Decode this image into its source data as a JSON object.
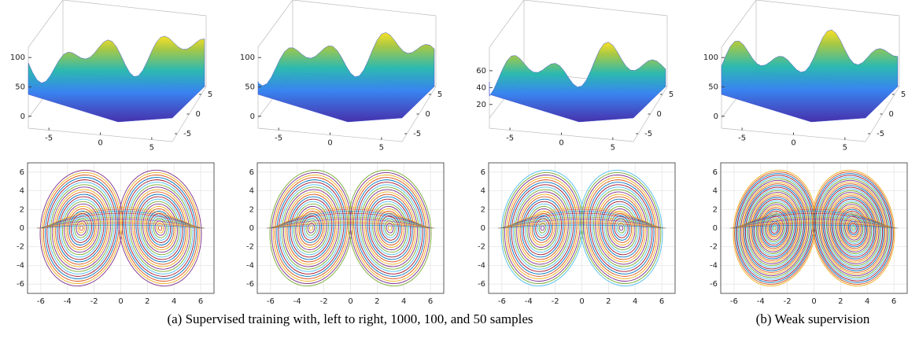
{
  "panels": [
    {
      "surface": {
        "zlim": [
          -3,
          115
        ],
        "zticks": [
          0,
          50,
          100
        ],
        "xlim": [
          -7,
          7
        ],
        "xticks": [
          -5,
          0,
          5
        ],
        "ylim": [
          -7,
          7
        ],
        "yticks": [
          -5,
          0,
          5
        ]
      },
      "phase": {
        "xlim": [
          -7,
          7
        ],
        "xticks": [
          -6,
          -4,
          -2,
          0,
          2,
          4,
          6
        ],
        "ylim": [
          -7,
          7
        ],
        "yticks": [
          -6,
          -4,
          -2,
          0,
          2,
          4,
          6
        ]
      }
    },
    {
      "surface": {
        "zlim": [
          -3,
          115
        ],
        "zticks": [
          0,
          50,
          100
        ],
        "xlim": [
          -7,
          7
        ],
        "xticks": [
          -5,
          0,
          5
        ],
        "ylim": [
          -7,
          7
        ],
        "yticks": [
          -5,
          0,
          5
        ]
      },
      "phase": {
        "xlim": [
          -7,
          7
        ],
        "xticks": [
          -6,
          -4,
          -2,
          0,
          2,
          4,
          6
        ],
        "ylim": [
          -7,
          7
        ],
        "yticks": [
          -6,
          -4,
          -2,
          0,
          2,
          4,
          6
        ]
      }
    },
    {
      "surface": {
        "zlim": [
          4,
          86
        ],
        "zticks": [
          20,
          40,
          60
        ],
        "xlim": [
          -7,
          7
        ],
        "xticks": [
          -5,
          0,
          5
        ],
        "ylim": [
          -7,
          7
        ],
        "yticks": [
          -5,
          0,
          5
        ]
      },
      "phase": {
        "xlim": [
          -7,
          7
        ],
        "xticks": [
          -6,
          -4,
          -2,
          0,
          2,
          4,
          6
        ],
        "ylim": [
          -7,
          7
        ],
        "yticks": [
          -6,
          -4,
          -2,
          0,
          2,
          4,
          6
        ]
      }
    },
    {
      "surface": {
        "zlim": [
          -3,
          115
        ],
        "zticks": [
          0,
          50,
          100
        ],
        "xlim": [
          -7,
          7
        ],
        "xticks": [
          -5,
          0,
          5
        ],
        "ylim": [
          -7,
          7
        ],
        "yticks": [
          -5,
          0,
          5
        ]
      },
      "phase": {
        "xlim": [
          -7,
          7
        ],
        "xticks": [
          -6,
          -4,
          -2,
          0,
          2,
          4,
          6
        ],
        "ylim": [
          -7,
          7
        ],
        "yticks": [
          -6,
          -4,
          -2,
          0,
          2,
          4,
          6
        ]
      }
    }
  ],
  "captions": [
    "(a) Supervised training with, left to right, 1000, 100, and 50 samples",
    "(b) Weak supervision"
  ]
}
